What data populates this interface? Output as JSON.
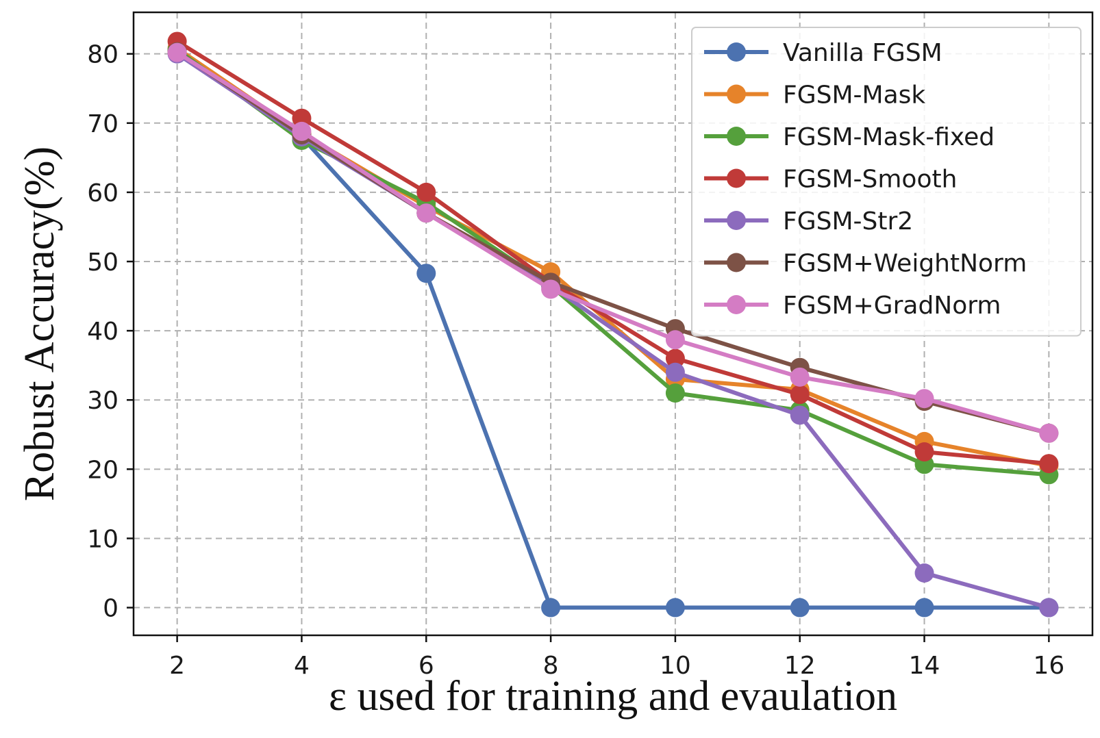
{
  "chart_data": {
    "type": "line",
    "title": "",
    "xlabel": "ε used for training and evaulation",
    "ylabel": "Robust Accuracy(%)",
    "x": [
      2,
      4,
      6,
      8,
      10,
      12,
      14,
      16
    ],
    "xticks": [
      2,
      4,
      6,
      8,
      10,
      12,
      14,
      16
    ],
    "yticks": [
      0,
      10,
      20,
      30,
      40,
      50,
      60,
      70,
      80
    ],
    "xlim": [
      1.3,
      16.7
    ],
    "ylim": [
      -4,
      86
    ],
    "grid": true,
    "legend_position": "top-right",
    "series": [
      {
        "name": "Vanilla FGSM",
        "color": "#4c72b0",
        "values": [
          80.5,
          68.0,
          48.3,
          0.0,
          0.0,
          0.0,
          0.0,
          0.0
        ]
      },
      {
        "name": "FGSM-Mask",
        "color": "#e6832a",
        "values": [
          80.8,
          68.5,
          58.0,
          48.5,
          33.0,
          31.5,
          24.0,
          20.5
        ]
      },
      {
        "name": "FGSM-Mask-fixed",
        "color": "#55a03c",
        "values": [
          80.6,
          67.5,
          58.5,
          46.5,
          31.0,
          28.5,
          20.7,
          19.2
        ]
      },
      {
        "name": "FGSM-Smooth",
        "color": "#c03a38",
        "values": [
          81.8,
          70.7,
          60.0,
          47.0,
          36.0,
          30.8,
          22.5,
          20.8
        ]
      },
      {
        "name": "FGSM-Str2",
        "color": "#8c6bbd",
        "values": [
          80.0,
          68.0,
          57.0,
          46.5,
          34.0,
          27.8,
          5.0,
          0.0
        ]
      },
      {
        "name": "FGSM+WeightNorm",
        "color": "#7d5246",
        "values": [
          80.3,
          68.3,
          57.0,
          47.0,
          40.3,
          34.7,
          29.8,
          25.2
        ]
      },
      {
        "name": "FGSM+GradNorm",
        "color": "#d47cc4",
        "values": [
          80.2,
          68.8,
          57.0,
          46.0,
          38.7,
          33.3,
          30.2,
          25.2
        ]
      }
    ]
  }
}
